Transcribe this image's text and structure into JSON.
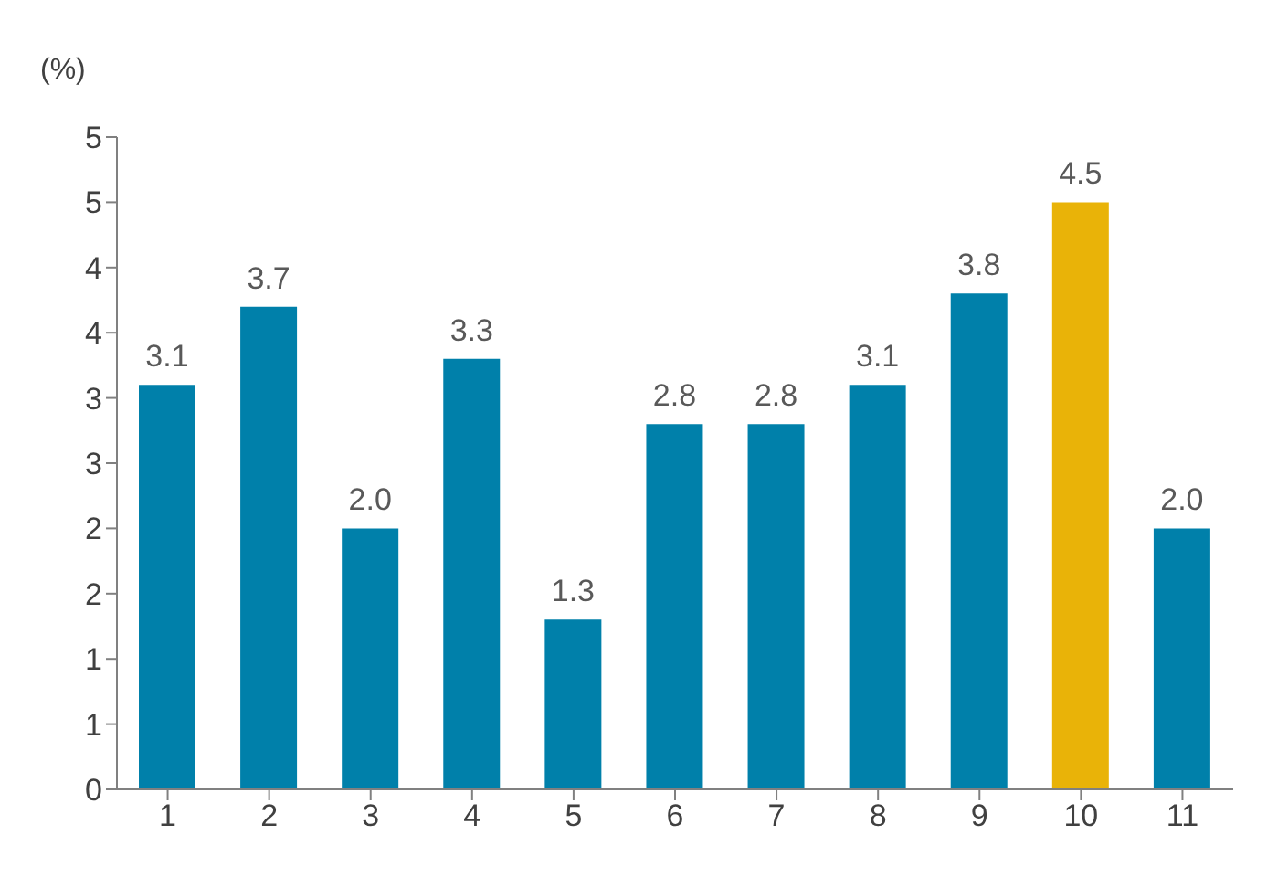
{
  "chart_data": {
    "type": "bar",
    "ylabel": "(%)",
    "categories": [
      "1",
      "2",
      "3",
      "4",
      "5",
      "6",
      "7",
      "8",
      "9",
      "10",
      "11"
    ],
    "values": [
      3.1,
      3.7,
      2.0,
      3.3,
      1.3,
      2.8,
      2.8,
      3.1,
      3.8,
      4.5,
      2.0
    ],
    "value_labels": [
      "3.1",
      "3.7",
      "2.0",
      "3.3",
      "1.3",
      "2.8",
      "2.8",
      "3.1",
      "3.8",
      "4.5",
      "2.0"
    ],
    "colors": [
      "#0080aa",
      "#0080aa",
      "#0080aa",
      "#0080aa",
      "#0080aa",
      "#0080aa",
      "#0080aa",
      "#0080aa",
      "#0080aa",
      "#e9b308",
      "#0080aa"
    ],
    "ylim": [
      0,
      5
    ],
    "yticks": [
      {
        "value": 0,
        "label": "0"
      },
      {
        "value": 0.5,
        "label": "1"
      },
      {
        "value": 1,
        "label": "1"
      },
      {
        "value": 1.5,
        "label": "2"
      },
      {
        "value": 2,
        "label": "2"
      },
      {
        "value": 2.5,
        "label": "3"
      },
      {
        "value": 3,
        "label": "3"
      },
      {
        "value": 3.5,
        "label": "4"
      },
      {
        "value": 4,
        "label": "4"
      },
      {
        "value": 4.5,
        "label": "5"
      },
      {
        "value": 5,
        "label": "5"
      }
    ],
    "grid": false,
    "legend": false
  }
}
